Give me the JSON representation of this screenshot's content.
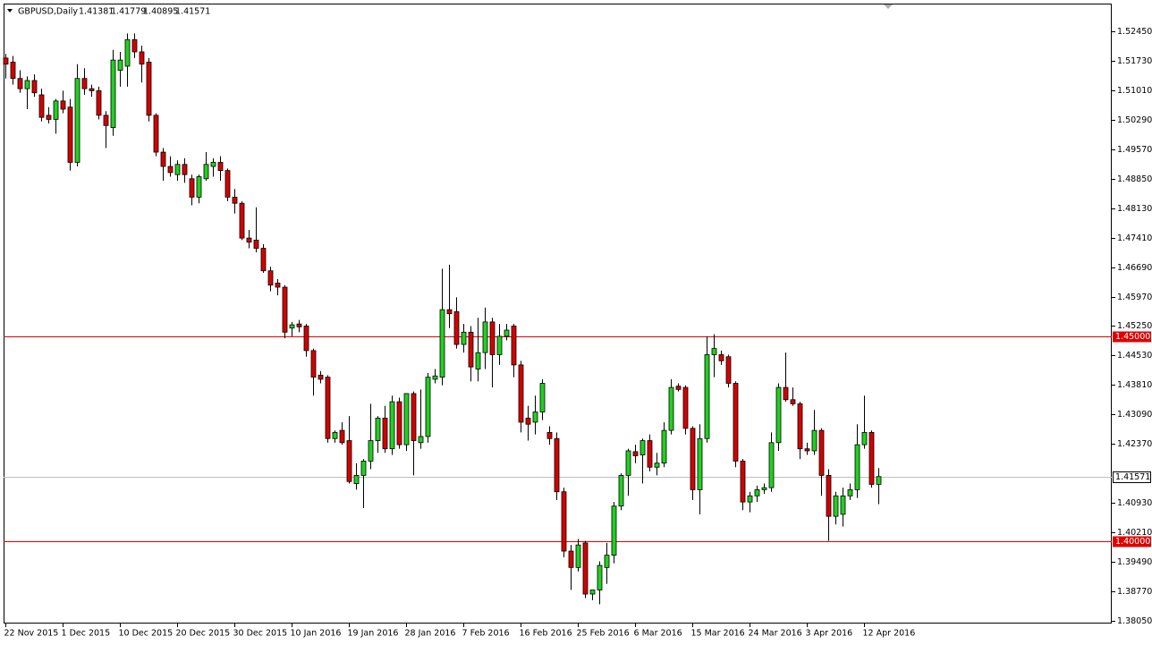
{
  "chart_data": {
    "type": "candlestick",
    "title": "GBPUSD,Daily",
    "categories": [
      "22 Nov 2015",
      null,
      null,
      null,
      null,
      null,
      null,
      null,
      "1 Dec 2015",
      null,
      null,
      null,
      null,
      null,
      null,
      null,
      "10 Dec 2015",
      null,
      null,
      null,
      null,
      null,
      null,
      null,
      "20 Dec 2015",
      null,
      null,
      null,
      null,
      null,
      null,
      null,
      "30 Dec 2015",
      null,
      null,
      null,
      null,
      null,
      null,
      null,
      "10 Jan 2016",
      null,
      null,
      null,
      null,
      null,
      null,
      null,
      "19 Jan 2016",
      null,
      null,
      null,
      null,
      null,
      null,
      null,
      "28 Jan 2016",
      null,
      null,
      null,
      null,
      null,
      null,
      null,
      "7 Feb 2016",
      null,
      null,
      null,
      null,
      null,
      null,
      null,
      "16 Feb 2016",
      null,
      null,
      null,
      null,
      null,
      null,
      null,
      "25 Feb 2016",
      null,
      null,
      null,
      null,
      null,
      null,
      null,
      "6 Mar 2016",
      null,
      null,
      null,
      null,
      null,
      null,
      null,
      "15 Mar 2016",
      null,
      null,
      null,
      null,
      null,
      null,
      null,
      "24 Mar 2016",
      null,
      null,
      null,
      null,
      null,
      null,
      null,
      "3 Apr 2016",
      null,
      null,
      null,
      null,
      null,
      null,
      null,
      "12 Apr 2016",
      null,
      null
    ],
    "open": [
      1.518,
      1.517,
      1.513,
      1.5105,
      1.5125,
      1.509,
      1.504,
      1.503,
      1.5075,
      1.506,
      1.4925,
      1.513,
      1.5105,
      1.51,
      1.504,
      1.501,
      1.515,
      1.516,
      1.5225,
      1.5195,
      1.517,
      1.504,
      1.495,
      1.4915,
      1.4895,
      1.492,
      1.4885,
      1.484,
      1.4885,
      1.4915,
      1.4925,
      1.4905,
      1.484,
      1.4825,
      1.474,
      1.4735,
      1.4715,
      1.466,
      1.463,
      1.462,
      1.452,
      1.453,
      1.4525,
      1.4465,
      1.4405,
      1.44,
      1.425,
      1.427,
      1.4245,
      1.414,
      1.416,
      1.4195,
      1.4245,
      1.43,
      1.4225,
      1.434,
      1.4235,
      1.436,
      1.424,
      1.4255,
      1.4395,
      1.44,
      1.4565,
      1.456,
      1.448,
      1.451,
      1.442,
      1.446,
      1.4535,
      1.4455,
      1.45,
      1.4525,
      1.443,
      1.43,
      1.429,
      1.4315,
      1.4265,
      1.425,
      1.412,
      1.3975,
      1.3935,
      1.3995,
      1.387,
      1.388,
      1.3935,
      1.3965,
      1.4085,
      1.416,
      1.4218,
      1.421,
      1.4245,
      1.418,
      1.419,
      1.427,
      1.4378,
      1.4375,
      1.4275,
      1.4125,
      1.425,
      1.4455,
      1.4455,
      1.445,
      1.4385,
      1.4195,
      1.4095,
      1.411,
      1.4125,
      1.413,
      1.424,
      1.4375,
      1.4345,
      1.4335,
      1.4225,
      1.422,
      1.427,
      1.416,
      1.406,
      1.4065,
      1.411,
      1.4125,
      1.4235,
      1.4265,
      1.41381
    ],
    "high": [
      1.519,
      1.5185,
      1.515,
      1.5135,
      1.514,
      1.5105,
      1.506,
      1.508,
      1.51,
      1.508,
      1.5165,
      1.5155,
      1.5115,
      1.511,
      1.505,
      1.52,
      1.5195,
      1.524,
      1.524,
      1.521,
      1.518,
      1.5045,
      1.496,
      1.494,
      1.493,
      1.4935,
      1.4895,
      1.4895,
      1.495,
      1.4935,
      1.494,
      1.491,
      1.486,
      1.483,
      1.476,
      1.4815,
      1.4725,
      1.467,
      1.464,
      1.4625,
      1.4535,
      1.454,
      1.453,
      1.447,
      1.4415,
      1.4405,
      1.427,
      1.429,
      1.4305,
      1.419,
      1.42,
      1.4335,
      1.4305,
      1.433,
      1.4355,
      1.435,
      1.436,
      1.4365,
      1.437,
      1.441,
      1.442,
      1.4665,
      1.4675,
      1.4595,
      1.453,
      1.4525,
      1.4545,
      1.457,
      1.4545,
      1.453,
      1.453,
      1.453,
      1.444,
      1.433,
      1.4355,
      1.4395,
      1.428,
      1.4265,
      1.413,
      1.399,
      1.4005,
      1.4,
      1.388,
      1.395,
      1.3995,
      1.4095,
      1.4165,
      1.4225,
      1.4235,
      1.425,
      1.426,
      1.4215,
      1.429,
      1.4395,
      1.4385,
      1.438,
      1.428,
      1.4285,
      1.45,
      1.4505,
      1.4465,
      1.4455,
      1.439,
      1.42,
      1.412,
      1.4135,
      1.414,
      1.4265,
      1.4385,
      1.446,
      1.4375,
      1.434,
      1.424,
      1.432,
      1.4275,
      1.4175,
      1.412,
      1.413,
      1.414,
      1.4285,
      1.4355,
      1.427,
      1.41779
    ],
    "low": [
      1.513,
      1.5115,
      1.5095,
      1.5055,
      1.5085,
      1.5025,
      1.502,
      1.4995,
      1.5045,
      1.4905,
      1.4915,
      1.509,
      1.5085,
      1.503,
      1.496,
      1.499,
      1.511,
      1.511,
      1.518,
      1.512,
      1.5025,
      1.494,
      1.488,
      1.489,
      1.488,
      1.4875,
      1.482,
      1.4825,
      1.488,
      1.489,
      1.488,
      1.483,
      1.48,
      1.4735,
      1.4715,
      1.4705,
      1.4655,
      1.461,
      1.46,
      1.4495,
      1.45,
      1.451,
      1.445,
      1.4355,
      1.4385,
      1.424,
      1.424,
      1.4235,
      1.414,
      1.4125,
      1.408,
      1.4175,
      1.4215,
      1.4215,
      1.421,
      1.4225,
      1.422,
      1.416,
      1.4225,
      1.424,
      1.4385,
      1.438,
      1.452,
      1.447,
      1.446,
      1.439,
      1.439,
      1.442,
      1.4375,
      1.443,
      1.449,
      1.44,
      1.4265,
      1.4245,
      1.426,
      1.4295,
      1.4235,
      1.41,
      1.396,
      1.388,
      1.3925,
      1.386,
      1.3855,
      1.3845,
      1.3895,
      1.3945,
      1.4075,
      1.411,
      1.419,
      1.414,
      1.417,
      1.416,
      1.418,
      1.426,
      1.4365,
      1.426,
      1.41,
      1.4065,
      1.424,
      1.44,
      1.443,
      1.4375,
      1.418,
      1.4075,
      1.407,
      1.4095,
      1.4115,
      1.412,
      1.422,
      1.434,
      1.433,
      1.42,
      1.421,
      1.421,
      1.411,
      1.4,
      1.404,
      1.4035,
      1.41,
      1.4105,
      1.4225,
      1.413,
      1.40895
    ],
    "close": [
      1.5165,
      1.513,
      1.5105,
      1.5125,
      1.5095,
      1.5035,
      1.503,
      1.5075,
      1.5055,
      1.4925,
      1.513,
      1.5105,
      1.51,
      1.504,
      1.5015,
      1.5175,
      1.5175,
      1.5225,
      1.5195,
      1.5165,
      1.504,
      1.495,
      1.4915,
      1.49,
      1.492,
      1.4895,
      1.484,
      1.489,
      1.492,
      1.4925,
      1.4905,
      1.484,
      1.4825,
      1.474,
      1.473,
      1.4715,
      1.466,
      1.4625,
      1.462,
      1.451,
      1.4528,
      1.4523,
      1.4465,
      1.44,
      1.4395,
      1.425,
      1.4265,
      1.424,
      1.4145,
      1.416,
      1.4195,
      1.4245,
      1.43,
      1.4225,
      1.434,
      1.4235,
      1.436,
      1.4245,
      1.4255,
      1.44,
      1.4403,
      1.4565,
      1.4555,
      1.448,
      1.451,
      1.4425,
      1.446,
      1.4535,
      1.4455,
      1.45,
      1.4515,
      1.443,
      1.429,
      1.4285,
      1.4315,
      1.4385,
      1.425,
      1.412,
      1.3975,
      1.3935,
      1.399,
      1.387,
      1.388,
      1.394,
      1.3965,
      1.4085,
      1.416,
      1.422,
      1.4208,
      1.4245,
      1.418,
      1.419,
      1.427,
      1.4375,
      1.437,
      1.4275,
      1.4125,
      1.425,
      1.4455,
      1.447,
      1.444,
      1.4385,
      1.4195,
      1.4095,
      1.411,
      1.4125,
      1.413,
      1.424,
      1.4375,
      1.4345,
      1.4335,
      1.4225,
      1.422,
      1.427,
      1.416,
      1.406,
      1.411,
      1.411,
      1.4125,
      1.4235,
      1.4265,
      1.4138,
      1.41571
    ],
    "up_color": "#22d022",
    "down_color": "#d40000",
    "bid_line_color": "#c0c0c0",
    "ylim": [
      1.3798,
      1.5313
    ],
    "yticks": [
      {
        "value": 1.5245,
        "label": "1.52450"
      },
      {
        "value": 1.5173,
        "label": "1.51730"
      },
      {
        "value": 1.5101,
        "label": "1.51010"
      },
      {
        "value": 1.5029,
        "label": "1.50290"
      },
      {
        "value": 1.4957,
        "label": "1.49570"
      },
      {
        "value": 1.4885,
        "label": "1.48850"
      },
      {
        "value": 1.4813,
        "label": "1.48130"
      },
      {
        "value": 1.4741,
        "label": "1.47410"
      },
      {
        "value": 1.4669,
        "label": "1.46690"
      },
      {
        "value": 1.4597,
        "label": "1.45970"
      },
      {
        "value": 1.4525,
        "label": "1.45250"
      },
      {
        "value": 1.4453,
        "label": "1.44530"
      },
      {
        "value": 1.4381,
        "label": "1.43810"
      },
      {
        "value": 1.4309,
        "label": "1.43090"
      },
      {
        "value": 1.4237,
        "label": "1.42370"
      },
      {
        "value": 1.4093,
        "label": "1.40930"
      },
      {
        "value": 1.4021,
        "label": "1.40210"
      },
      {
        "value": 1.3949,
        "label": "1.39490"
      },
      {
        "value": 1.3877,
        "label": "1.38770"
      },
      {
        "value": 1.3805,
        "label": "1.38050"
      }
    ],
    "hlines": [
      {
        "value": 1.45,
        "label": "1.45000",
        "color": "#e00000"
      },
      {
        "value": 1.4,
        "label": "1.40000",
        "color": "#e00000"
      }
    ]
  }
}
